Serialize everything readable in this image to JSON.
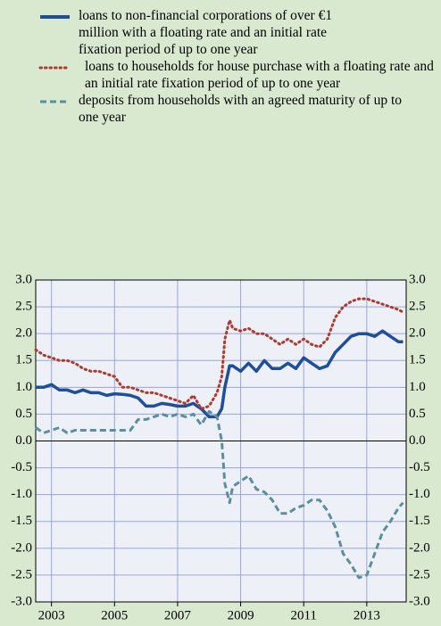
{
  "chart_data": {
    "type": "line",
    "x": [
      2002.5,
      2002.75,
      2003,
      2003.25,
      2003.5,
      2003.75,
      2004,
      2004.25,
      2004.5,
      2004.75,
      2005,
      2005.25,
      2005.5,
      2005.75,
      2006,
      2006.25,
      2006.5,
      2006.75,
      2007,
      2007.25,
      2007.5,
      2007.75,
      2008,
      2008.25,
      2008.4,
      2008.5,
      2008.65,
      2008.75,
      2009,
      2009.25,
      2009.5,
      2009.75,
      2010,
      2010.25,
      2010.5,
      2010.75,
      2011,
      2011.25,
      2011.5,
      2011.75,
      2012,
      2012.25,
      2012.5,
      2012.75,
      2013,
      2013.25,
      2013.5,
      2013.75,
      2014,
      2014.15
    ],
    "series": [
      {
        "name": "loans to non-financial corporations of over €1 million with a floating rate and an initial rate fixation period of up to one year",
        "color": "#1f4e9a",
        "style": "solid",
        "values": [
          1.0,
          1.0,
          1.05,
          0.95,
          0.95,
          0.9,
          0.95,
          0.9,
          0.9,
          0.85,
          0.88,
          0.87,
          0.85,
          0.8,
          0.65,
          0.65,
          0.7,
          0.68,
          0.65,
          0.65,
          0.7,
          0.6,
          0.45,
          0.45,
          0.6,
          1.0,
          1.4,
          1.4,
          1.3,
          1.45,
          1.3,
          1.5,
          1.35,
          1.35,
          1.45,
          1.35,
          1.55,
          1.45,
          1.35,
          1.4,
          1.65,
          1.8,
          1.95,
          2.0,
          2.0,
          1.95,
          2.05,
          1.95,
          1.85,
          1.85
        ]
      },
      {
        "name": "loans to households for house purchase with a floating rate and an initial rate fixation period of up to one year",
        "color": "#b03a2e",
        "style": "dotted",
        "values": [
          1.7,
          1.6,
          1.55,
          1.5,
          1.5,
          1.45,
          1.35,
          1.3,
          1.3,
          1.25,
          1.2,
          1.0,
          1.0,
          0.95,
          0.9,
          0.9,
          0.85,
          0.8,
          0.75,
          0.7,
          0.85,
          0.6,
          0.65,
          0.9,
          1.2,
          1.9,
          2.25,
          2.1,
          2.05,
          2.1,
          2.0,
          2.0,
          1.9,
          1.8,
          1.9,
          1.8,
          1.9,
          1.8,
          1.75,
          1.9,
          2.3,
          2.5,
          2.6,
          2.65,
          2.65,
          2.6,
          2.55,
          2.5,
          2.45,
          2.4
        ]
      },
      {
        "name": "deposits from households with an agreed maturity of up to one year",
        "color": "#5b8fa0",
        "style": "dashed",
        "values": [
          0.25,
          0.15,
          0.2,
          0.25,
          0.15,
          0.2,
          0.2,
          0.2,
          0.2,
          0.2,
          0.2,
          0.2,
          0.2,
          0.4,
          0.4,
          0.45,
          0.5,
          0.45,
          0.5,
          0.45,
          0.5,
          0.3,
          0.55,
          0.45,
          0.0,
          -0.8,
          -1.15,
          -0.85,
          -0.75,
          -0.65,
          -0.9,
          -0.95,
          -1.1,
          -1.35,
          -1.35,
          -1.25,
          -1.2,
          -1.1,
          -1.1,
          -1.3,
          -1.6,
          -2.1,
          -2.3,
          -2.55,
          -2.5,
          -2.1,
          -1.7,
          -1.5,
          -1.25,
          -1.15
        ]
      }
    ],
    "xlim": [
      2002.5,
      2014.25
    ],
    "xticks": [
      2003,
      2005,
      2007,
      2009,
      2011,
      2013
    ],
    "ylim": [
      -3,
      3
    ],
    "yticks": [
      {
        "value": 3,
        "label": "3.0"
      },
      2.5,
      {
        "value": 2,
        "label": "2.0"
      },
      1.5,
      {
        "value": 1,
        "label": "1.0"
      },
      0.5,
      {
        "value": 0,
        "label": "0.0"
      },
      -0.5,
      {
        "value": -1,
        "label": "-1.0"
      },
      -1.5,
      {
        "value": -2,
        "label": "-2.0"
      },
      -2.5,
      {
        "value": -3,
        "label": "-3.0"
      }
    ],
    "grid": true
  }
}
